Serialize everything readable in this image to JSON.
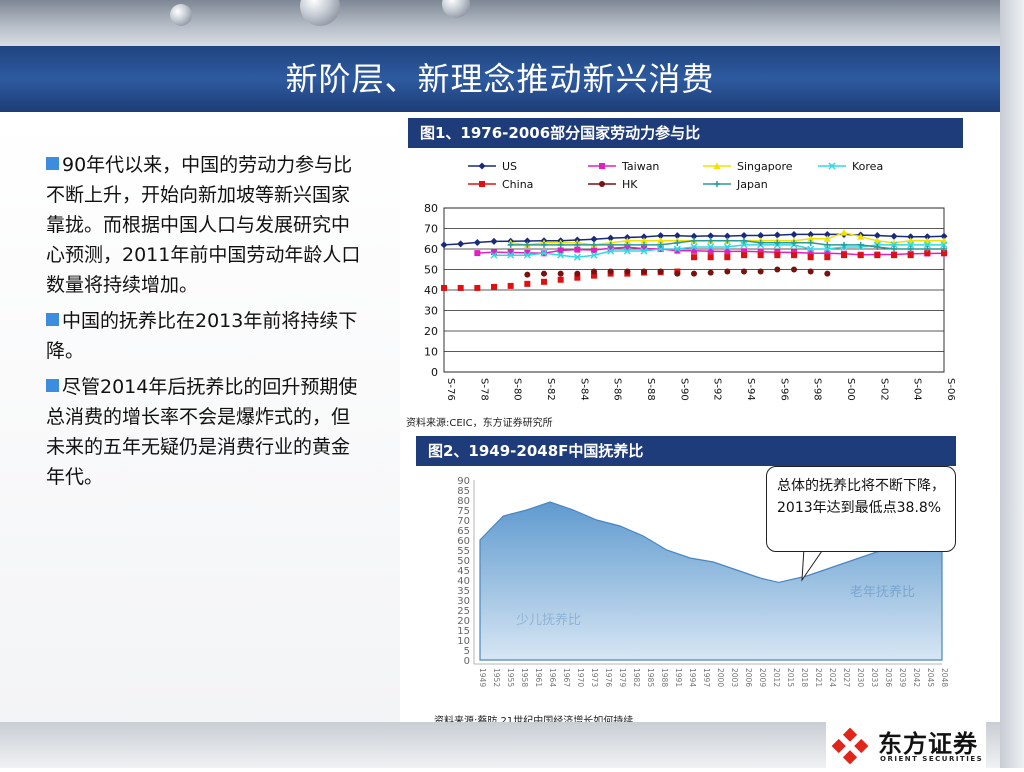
{
  "slide": {
    "title": "新阶层、新理念推动新兴消费"
  },
  "bullets": [
    {
      "text": "90年代以来，中国的劳动力参与比不断上升，开始向新加坡等新兴国家靠拢。而根据中国人口与发展研究中心预测，2011年前中国劳动年龄人口数量将持续增加。"
    },
    {
      "text": "中国的抚养比在2013年前将持续下降。"
    },
    {
      "text": "尽管2014年后抚养比的回升预期使总消费的增长率不会是爆炸式的，但未来的五年无疑仍是消费行业的黄金年代。"
    }
  ],
  "figure1": {
    "title": "图1、1976-2006部分国家劳动力参与比",
    "source": "资料来源:CEIC，东方证券研究所"
  },
  "figure2": {
    "title": "图2、1949-2048F中国抚养比",
    "source": "资料来源:蔡昉,21世纪中国经济增长如何持续",
    "callout": "总体的抚养比将不断下降，2013年达到最低点38.8%",
    "label_old": "老年抚养比",
    "label_child": "少儿抚养比"
  },
  "logo": {
    "name": "东方证券",
    "name_en": "ORIENT SECURITIES",
    "color": "#e1251b"
  },
  "chart_data": [
    {
      "type": "line",
      "title": "图1、1976-2006部分国家劳动力参与比",
      "x": [
        "S-76",
        "S-77",
        "S-78",
        "S-79",
        "S-80",
        "S-81",
        "S-82",
        "S-83",
        "S-84",
        "S-85",
        "S-86",
        "S-87",
        "S-88",
        "S-89",
        "S-90",
        "S-91",
        "S-92",
        "S-93",
        "S-94",
        "S-95",
        "S-96",
        "S-97",
        "S-98",
        "S-99",
        "S-00",
        "S-01",
        "S-02",
        "S-03",
        "S-04",
        "S-05",
        "S-06"
      ],
      "x_tick_labels": [
        "S-76",
        "S-78",
        "S-80",
        "S-82",
        "S-84",
        "S-86",
        "S-88",
        "S-90",
        "S-92",
        "S-94",
        "S-96",
        "S-98",
        "S-00",
        "S-02",
        "S-04",
        "S-06"
      ],
      "ylim": [
        0,
        80
      ],
      "y_ticks": [
        0,
        10,
        20,
        30,
        40,
        50,
        60,
        70,
        80
      ],
      "legend_position": "top",
      "grid": true,
      "series": [
        {
          "name": "US",
          "color": "#1a2a7a",
          "marker": "diamond",
          "values": [
            62,
            62.5,
            63.2,
            63.7,
            63.8,
            63.9,
            64,
            64,
            64.4,
            64.8,
            65.3,
            65.6,
            65.9,
            66.5,
            66.5,
            66.2,
            66.4,
            66.3,
            66.6,
            66.6,
            66.8,
            67.1,
            67.1,
            67.1,
            67.1,
            66.8,
            66.6,
            66.2,
            66,
            66,
            66.2
          ]
        },
        {
          "name": "Taiwan",
          "color": "#e020c0",
          "marker": "square",
          "values": [
            null,
            null,
            58,
            58.5,
            58.3,
            58.1,
            57.9,
            59.3,
            59.7,
            59.5,
            60.4,
            60.9,
            60.2,
            60,
            59.2,
            59.1,
            58.9,
            58.8,
            58.9,
            58.7,
            58.4,
            58.3,
            58,
            57.9,
            57.7,
            57.2,
            57.3,
            57.3,
            57.7,
            57.8,
            57.9
          ]
        },
        {
          "name": "Singapore",
          "color": "#f2e000",
          "marker": "triangle",
          "values": [
            null,
            null,
            null,
            null,
            63,
            62,
            63,
            63,
            63,
            62,
            63,
            64,
            64,
            64,
            64,
            64,
            64,
            64,
            64,
            64,
            64,
            64,
            65,
            65,
            68,
            66,
            64,
            63,
            64,
            64,
            64
          ]
        },
        {
          "name": "Korea",
          "color": "#30d8e0",
          "marker": "x",
          "values": [
            null,
            null,
            null,
            57,
            57,
            57,
            58,
            57,
            56,
            57,
            59,
            59,
            59,
            60,
            60,
            61,
            61,
            61,
            62,
            62,
            62,
            62,
            60,
            60,
            61,
            61,
            62,
            62,
            62,
            62,
            62
          ]
        },
        {
          "name": "China",
          "color": "#e01010",
          "marker": "square",
          "values": [
            41,
            41,
            41,
            41.5,
            42,
            43,
            44,
            45,
            46,
            47,
            48,
            48,
            48.5,
            48.7,
            49,
            56,
            56,
            56,
            57,
            57,
            57,
            57,
            56,
            56,
            57,
            57,
            57,
            57,
            57,
            58,
            58
          ]
        },
        {
          "name": "HK",
          "color": "#7a1010",
          "marker": "circle",
          "values": [
            null,
            null,
            null,
            null,
            null,
            47.5,
            48,
            48,
            48,
            49,
            49,
            49,
            49,
            49,
            48,
            48,
            48.5,
            49,
            49,
            49,
            50,
            50,
            49,
            48,
            null,
            null,
            null,
            null,
            null,
            null,
            null
          ]
        },
        {
          "name": "Japan",
          "color": "#2a9a9a",
          "marker": "plus",
          "values": [
            null,
            null,
            null,
            null,
            62,
            62,
            62,
            62,
            62,
            62,
            62,
            62,
            62,
            62,
            63,
            64,
            64,
            64,
            64,
            63,
            63,
            63,
            63,
            62,
            62,
            62,
            61,
            60,
            60,
            60,
            60
          ]
        }
      ]
    },
    {
      "type": "area",
      "title": "图2、1949-2048F中国抚养比",
      "ylim": [
        0,
        90
      ],
      "y_ticks": [
        0,
        5,
        10,
        15,
        20,
        25,
        30,
        35,
        40,
        45,
        50,
        55,
        60,
        65,
        70,
        75,
        80,
        85,
        90
      ],
      "x": [
        1949,
        1954,
        1959,
        1964,
        1969,
        1974,
        1979,
        1984,
        1989,
        1994,
        1999,
        2004,
        2009,
        2013,
        2019,
        2024,
        2029,
        2034,
        2039,
        2044,
        2048
      ],
      "series": [
        {
          "name": "总抚养比",
          "values": [
            60,
            72,
            75,
            79,
            75,
            70,
            67,
            62,
            55,
            51,
            49,
            45,
            41,
            38.8,
            42,
            46,
            50,
            54,
            58,
            60,
            62
          ]
        }
      ]
    }
  ]
}
